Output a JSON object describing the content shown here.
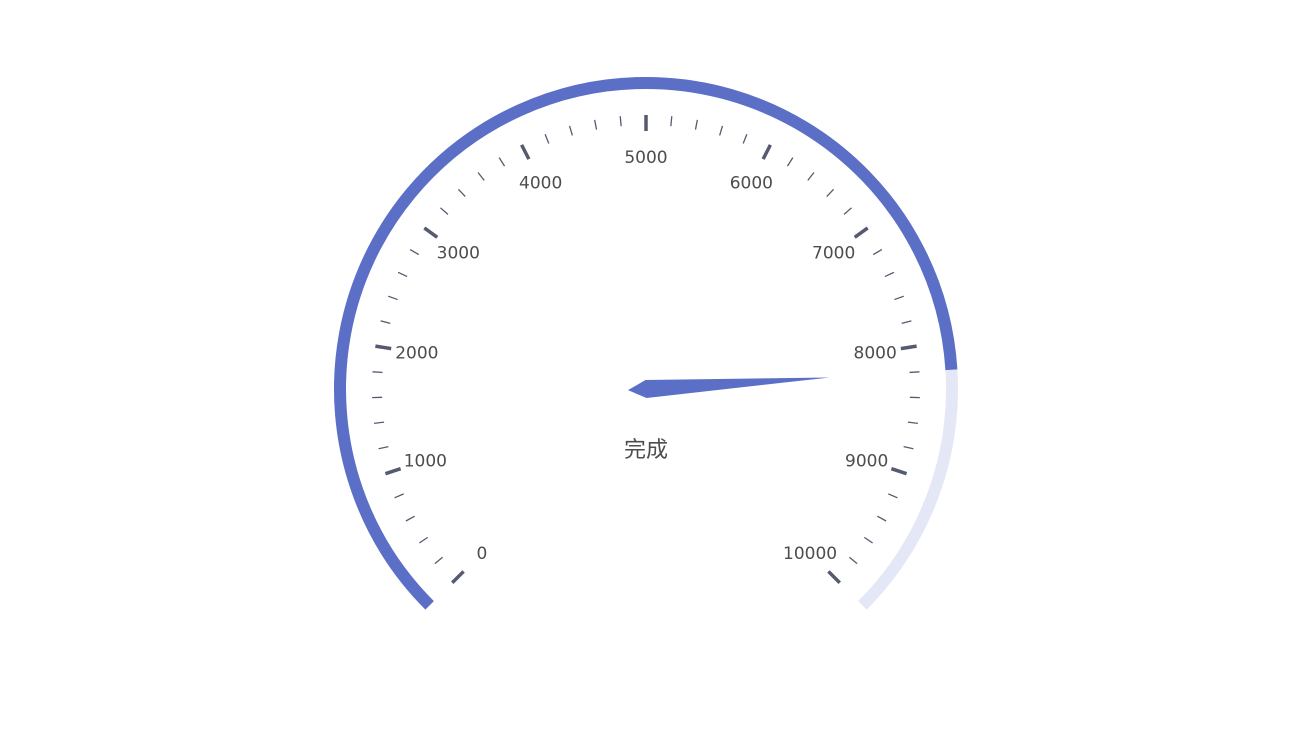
{
  "chart_data": {
    "type": "gauge",
    "title": "",
    "label": "完成",
    "value": 8200,
    "min": 0,
    "max": 10000,
    "major_tick_step": 1000,
    "minor_ticks_per_major": 5,
    "tick_labels": [
      "0",
      "1000",
      "2000",
      "3000",
      "4000",
      "5000",
      "6000",
      "7000",
      "8000",
      "9000",
      "10000"
    ],
    "progress_color": "#5b6fc6",
    "track_color": "#e4e8f6",
    "needle_color": "#5b6fc6",
    "tick_color": "#555a70",
    "label_color": "#4d4d4d"
  }
}
